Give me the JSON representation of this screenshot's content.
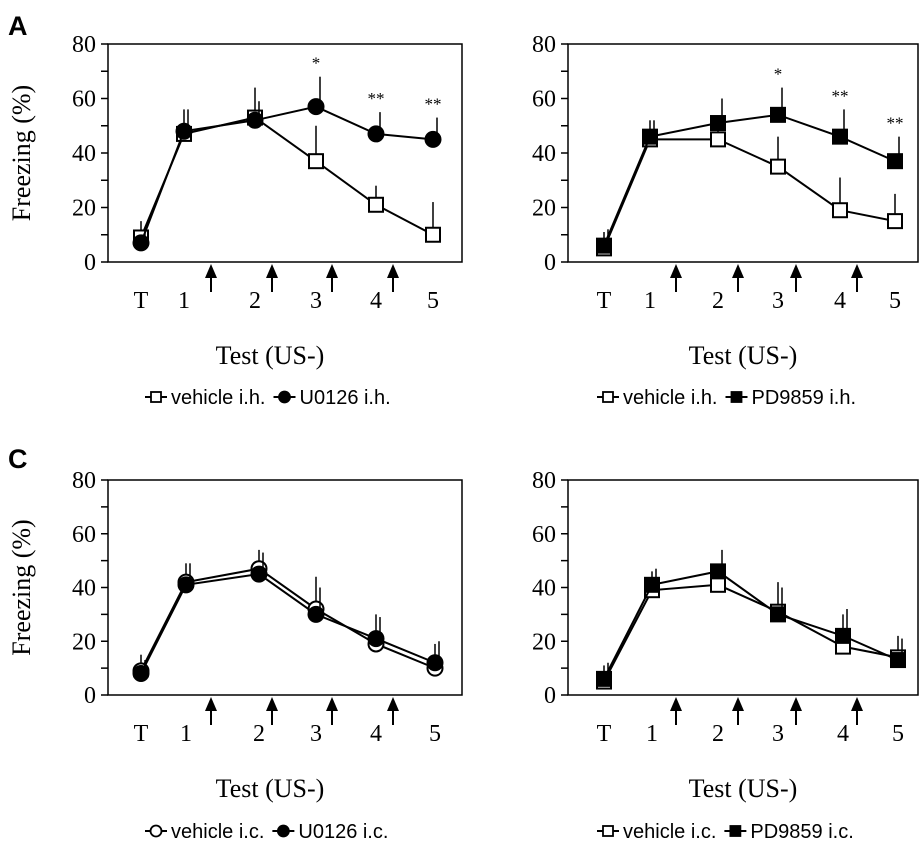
{
  "panel_labels": [
    "A",
    "C"
  ],
  "chart_data": [
    {
      "type": "line",
      "categories": [
        "T",
        "1",
        "2",
        "3",
        "4",
        "5"
      ],
      "ylabel": "Freezing (%)",
      "xlabel": "Test (US-)",
      "ylim": [
        0,
        80
      ],
      "yticks": [
        "0",
        "20",
        "40",
        "60",
        "80"
      ],
      "series": [
        {
          "name": "vehicle i.h.",
          "marker": "open-square",
          "values": [
            9,
            47,
            53,
            37,
            21,
            10
          ],
          "errors": [
            6,
            9,
            11,
            13,
            7,
            12
          ]
        },
        {
          "name": "U0126 i.h.",
          "marker": "filled-circle",
          "values": [
            7,
            48,
            52,
            57,
            47,
            45
          ],
          "errors": [
            5,
            8,
            7,
            11,
            8,
            8
          ]
        }
      ],
      "significance": [
        {
          "category": "3",
          "label": "*"
        },
        {
          "category": "4",
          "label": "**"
        },
        {
          "category": "5",
          "label": "**"
        }
      ]
    },
    {
      "type": "line",
      "categories": [
        "T",
        "1",
        "2",
        "3",
        "4",
        "5"
      ],
      "ylabel": "",
      "xlabel": "Test (US-)",
      "ylim": [
        0,
        80
      ],
      "yticks": [
        "0",
        "20",
        "40",
        "60",
        "80"
      ],
      "series": [
        {
          "name": "vehicle i.h.",
          "marker": "open-square",
          "values": [
            5,
            45,
            45,
            35,
            19,
            15
          ],
          "errors": [
            6,
            7,
            6,
            11,
            12,
            10
          ]
        },
        {
          "name": "PD9859 i.h.",
          "marker": "filled-square",
          "values": [
            6,
            46,
            51,
            54,
            46,
            37
          ],
          "errors": [
            6,
            6,
            9,
            10,
            10,
            9
          ]
        }
      ],
      "significance": [
        {
          "category": "3",
          "label": "*"
        },
        {
          "category": "4",
          "label": "**"
        },
        {
          "category": "5",
          "label": "**"
        }
      ]
    },
    {
      "type": "line",
      "categories": [
        "T",
        "1",
        "2",
        "3",
        "4",
        "5"
      ],
      "ylabel": "Freezing (%)",
      "xlabel": "Test (US-)",
      "ylim": [
        0,
        80
      ],
      "yticks": [
        "0",
        "20",
        "40",
        "60",
        "80"
      ],
      "series": [
        {
          "name": "vehicle i.c.",
          "marker": "open-circle",
          "values": [
            9,
            42,
            47,
            32,
            19,
            10
          ],
          "errors": [
            6,
            7,
            7,
            12,
            11,
            9
          ]
        },
        {
          "name": "U0126 i.c.",
          "marker": "filled-circle",
          "values": [
            8,
            41,
            45,
            30,
            21,
            12
          ],
          "errors": [
            5,
            8,
            8,
            10,
            8,
            8
          ]
        }
      ],
      "significance": []
    },
    {
      "type": "line",
      "categories": [
        "T",
        "1",
        "2",
        "3",
        "4",
        "5"
      ],
      "ylabel": "",
      "xlabel": "Test (US-)",
      "ylim": [
        0,
        80
      ],
      "yticks": [
        "0",
        "20",
        "40",
        "60",
        "80"
      ],
      "series": [
        {
          "name": "vehicle i.c.",
          "marker": "open-square",
          "values": [
            5,
            39,
            41,
            31,
            18,
            14
          ],
          "errors": [
            6,
            7,
            7,
            11,
            12,
            8
          ]
        },
        {
          "name": "PD9859 i.c.",
          "marker": "filled-square",
          "values": [
            6,
            41,
            46,
            30,
            22,
            13
          ],
          "errors": [
            6,
            6,
            8,
            10,
            10,
            8
          ]
        }
      ],
      "significance": []
    }
  ]
}
